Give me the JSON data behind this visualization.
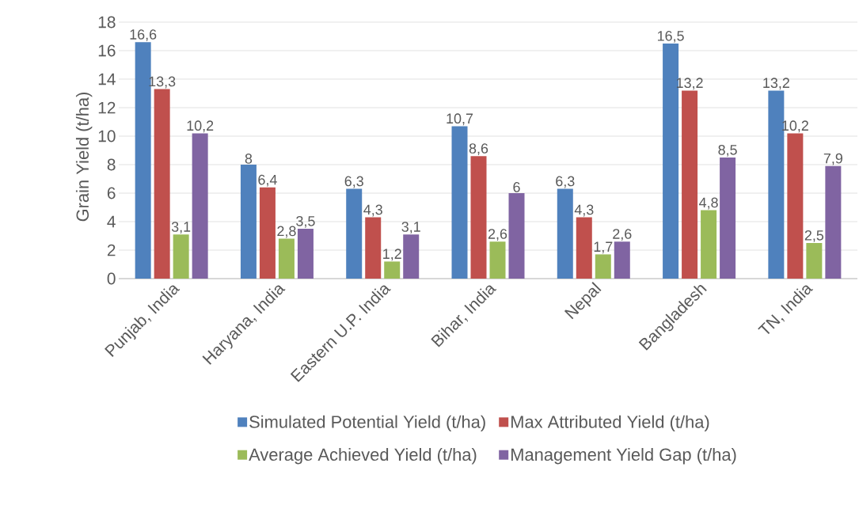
{
  "chart_data": {
    "type": "bar",
    "ylabel": "Grain Yield (t/ha)",
    "categories": [
      "Punjab, India",
      "Haryana, India",
      "Eastern U.P. India",
      "Bihar, India",
      "Nepal",
      "Bangladesh",
      "TN, India"
    ],
    "series": [
      {
        "name": "Simulated Potential Yield (t/ha)",
        "color": "#4f81bd",
        "values": [
          16.6,
          8,
          6.3,
          10.7,
          6.3,
          16.5,
          13.2
        ],
        "value_labels": [
          "16,6",
          "8",
          "6,3",
          "10,7",
          "6,3",
          "16,5",
          "13,2"
        ]
      },
      {
        "name": "Max Attributed Yield (t/ha)",
        "color": "#c0504d",
        "values": [
          13.3,
          6.4,
          4.3,
          8.6,
          4.3,
          13.2,
          10.2
        ],
        "value_labels": [
          "13,3",
          "6,4",
          "4,3",
          "8,6",
          "4,3",
          "13,2",
          "10,2"
        ]
      },
      {
        "name": "Average Achieved Yield (t/ha)",
        "color": "#9bbb59",
        "values": [
          3.1,
          2.8,
          1.2,
          2.6,
          1.7,
          4.8,
          2.5
        ],
        "value_labels": [
          "3,1",
          "2,8",
          "1,2",
          "2,6",
          "1,7",
          "4,8",
          "2,5"
        ]
      },
      {
        "name": "Management Yield Gap (t/ha)",
        "color": "#8064a2",
        "values": [
          10.2,
          3.5,
          3.1,
          6,
          2.6,
          8.5,
          7.9
        ],
        "value_labels": [
          "10,2",
          "3,5",
          "3,1",
          "6",
          "2,6",
          "8,5",
          "7,9"
        ]
      }
    ],
    "ylim": [
      0,
      18
    ],
    "yticks": [
      0,
      2,
      4,
      6,
      8,
      10,
      12,
      14,
      16,
      18
    ],
    "grid": "y",
    "legend": "bottom"
  }
}
